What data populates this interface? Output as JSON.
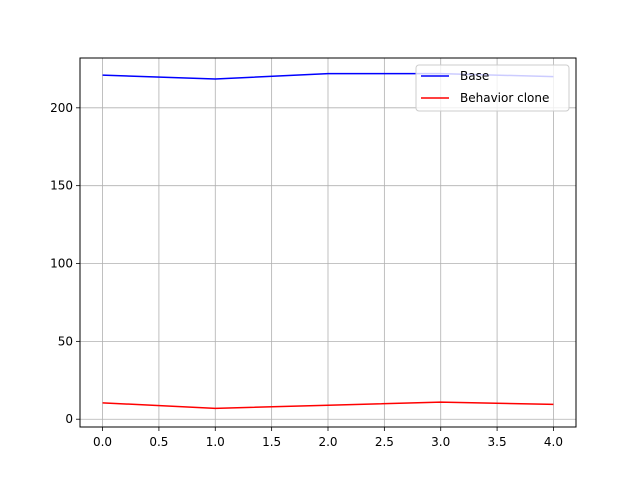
{
  "chart_data": {
    "type": "line",
    "title": "",
    "xlabel": "",
    "ylabel": "",
    "x": [
      0,
      1,
      2,
      3,
      4
    ],
    "xlim": [
      -0.2,
      4.2
    ],
    "ylim": [
      -5,
      232
    ],
    "xticks": [
      0.0,
      0.5,
      1.0,
      1.5,
      2.0,
      2.5,
      3.0,
      3.5,
      4.0
    ],
    "xtick_labels": [
      "0.0",
      "0.5",
      "1.0",
      "1.5",
      "2.0",
      "2.5",
      "3.0",
      "3.5",
      "4.0"
    ],
    "yticks": [
      0,
      50,
      100,
      150,
      200
    ],
    "ytick_labels": [
      "0",
      "50",
      "100",
      "150",
      "200"
    ],
    "grid": true,
    "legend": "top-right",
    "series": [
      {
        "name": "Base",
        "color": "#0000ff",
        "values": [
          221,
          218.5,
          222,
          222,
          220
        ]
      },
      {
        "name": "Behavior clone",
        "color": "#ff0000",
        "values": [
          10.5,
          7,
          9,
          11,
          9.5
        ]
      }
    ]
  }
}
